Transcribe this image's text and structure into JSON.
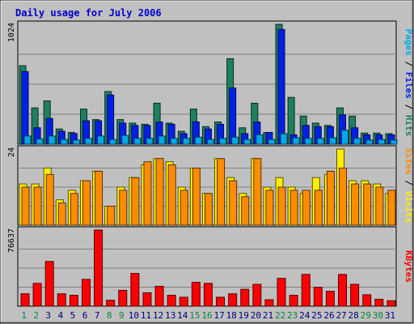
{
  "chart_data": {
    "title": "Daily usage for July 2006",
    "type": "bar",
    "categories": [
      "1",
      "2",
      "3",
      "4",
      "5",
      "6",
      "7",
      "8",
      "9",
      "10",
      "11",
      "12",
      "13",
      "14",
      "15",
      "16",
      "17",
      "18",
      "19",
      "20",
      "21",
      "22",
      "23",
      "24",
      "25",
      "26",
      "27",
      "28",
      "29",
      "30",
      "31"
    ],
    "weekend_days": [
      "1",
      "2",
      "8",
      "9",
      "15",
      "16",
      "22",
      "23",
      "29",
      "30"
    ],
    "panels": [
      {
        "id": "hits-files-pages",
        "axis_max_label": "1024",
        "ymax": 1024,
        "side_label_parts": [
          "Pages",
          "Files",
          "Hits"
        ],
        "series": [
          {
            "name": "Hits",
            "color": "#1e8060",
            "values": [
              670,
              310,
              370,
              130,
              100,
              300,
              210,
              450,
              210,
              180,
              170,
              350,
              180,
              110,
              300,
              150,
              190,
              730,
              140,
              350,
              100,
              1024,
              400,
              240,
              180,
              160,
              310,
              240,
              95,
              95,
              90
            ]
          },
          {
            "name": "Files",
            "color": "#0020e8",
            "values": [
              620,
              140,
              220,
              110,
              90,
              200,
              200,
              420,
              180,
              160,
              160,
              190,
              170,
              90,
              190,
              130,
              170,
              480,
              90,
              190,
              100,
              980,
              80,
              160,
              150,
              150,
              250,
              140,
              80,
              80,
              80
            ]
          },
          {
            "name": "Pages",
            "color": "#00a8e8",
            "values": [
              70,
              45,
              70,
              40,
              35,
              50,
              70,
              40,
              75,
              50,
              50,
              70,
              50,
              50,
              60,
              40,
              50,
              60,
              40,
              80,
              40,
              90,
              55,
              50,
              50,
              55,
              120,
              50,
              35,
              40,
              35
            ]
          }
        ]
      },
      {
        "id": "visits-sites",
        "axis_max_label": "24",
        "ymax": 24,
        "side_label_parts": [
          "Sites",
          "Visits"
        ],
        "series": [
          {
            "name": "Visits",
            "color": "#ffee00",
            "values": [
              13,
              13,
              18,
              8,
              11,
              14,
              17,
              6,
              12,
              15,
              19,
              21,
              20,
              12,
              18,
              10,
              21,
              15,
              10,
              21,
              12,
              15,
              12,
              10,
              15,
              16,
              24,
              14,
              14,
              13,
              10
            ]
          },
          {
            "name": "Sites",
            "color": "#ff8c00",
            "values": [
              12,
              12,
              16,
              7,
              10,
              14,
              17,
              6,
              11,
              15,
              20,
              21,
              19,
              11,
              18,
              10,
              21,
              14,
              9,
              21,
              11,
              12,
              11,
              11,
              11,
              17,
              18,
              13,
              13,
              12,
              11
            ]
          }
        ]
      },
      {
        "id": "kbytes",
        "axis_max_label": "76637",
        "ymax": 76637,
        "side_label_parts": [
          "KBytes"
        ],
        "series": [
          {
            "name": "KBytes",
            "color": "#ff0000",
            "values": [
              12500,
              23000,
              45000,
              12500,
              11000,
              27000,
              76637,
              6000,
              16000,
              33000,
              13500,
              20000,
              11000,
              9000,
              24000,
              23000,
              9000,
              12500,
              17000,
              22000,
              6500,
              28000,
              11000,
              32000,
              19000,
              15000,
              32000,
              22000,
              11500,
              7000,
              5500
            ]
          }
        ]
      }
    ]
  }
}
